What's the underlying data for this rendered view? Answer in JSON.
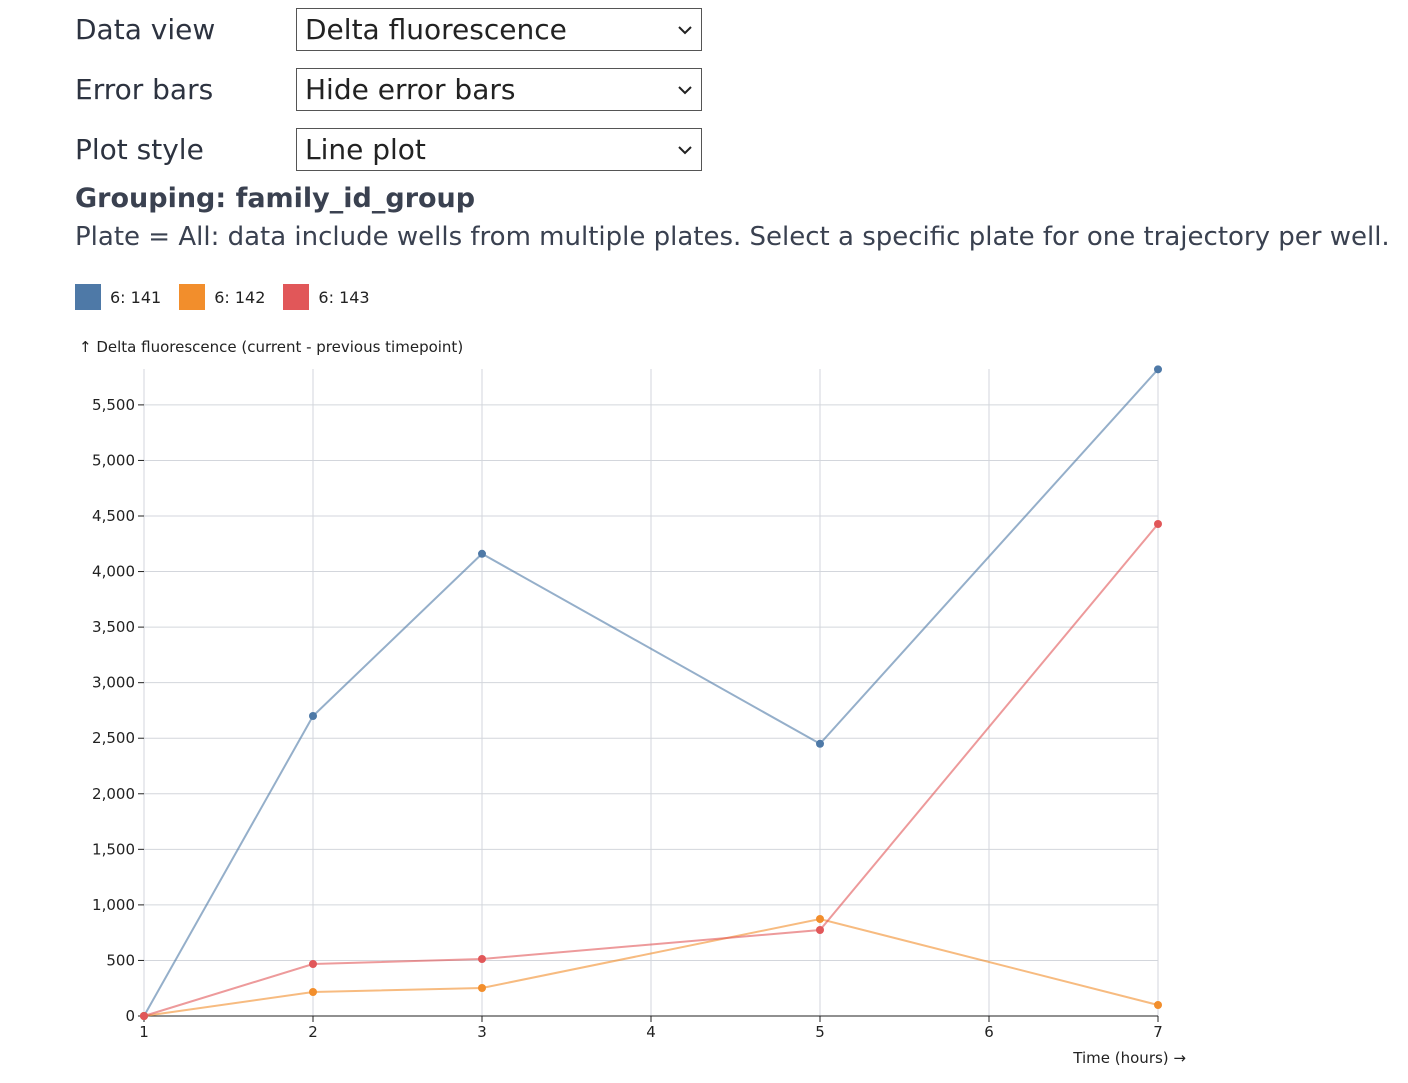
{
  "controls": [
    {
      "label": "Data view",
      "value": "Delta fluorescence"
    },
    {
      "label": "Error bars",
      "value": "Hide error bars"
    },
    {
      "label": "Plot style",
      "value": "Line plot"
    }
  ],
  "grouping": "Grouping: family_id_group",
  "note": "Plate = All: data include wells from multiple plates. Select a specific plate for one trajectory per well.",
  "chart_data": {
    "type": "line",
    "ylabel": "↑ Delta fluorescence (current - previous timepoint)",
    "xlabel": "Time (hours) →",
    "xlim": [
      1,
      7
    ],
    "ylim": [
      0,
      5823
    ],
    "xticks": [
      1,
      2,
      3,
      4,
      5,
      6,
      7
    ],
    "yticks": [
      0,
      500,
      1000,
      1500,
      2000,
      2500,
      3000,
      3500,
      4000,
      4500,
      5000,
      5500
    ],
    "ytick_labels": [
      "0",
      "500",
      "1,000",
      "1,500",
      "2,000",
      "2,500",
      "3,000",
      "3,500",
      "4,000",
      "4,500",
      "5,000",
      "5,500"
    ],
    "grid": true,
    "legend": "top-left",
    "series": [
      {
        "name": "6: 141",
        "color": "#4e79a7",
        "x": [
          1,
          2,
          3,
          5,
          7
        ],
        "y": [
          0,
          2700,
          4160,
          2450,
          5820
        ]
      },
      {
        "name": "6: 142",
        "color": "#f28e2c",
        "x": [
          1,
          2,
          3,
          5,
          7
        ],
        "y": [
          0,
          216,
          252,
          873,
          99
        ]
      },
      {
        "name": "6: 143",
        "color": "#e15759",
        "x": [
          1,
          2,
          3,
          5,
          7
        ],
        "y": [
          0,
          468,
          513,
          774,
          4428
        ]
      }
    ]
  }
}
